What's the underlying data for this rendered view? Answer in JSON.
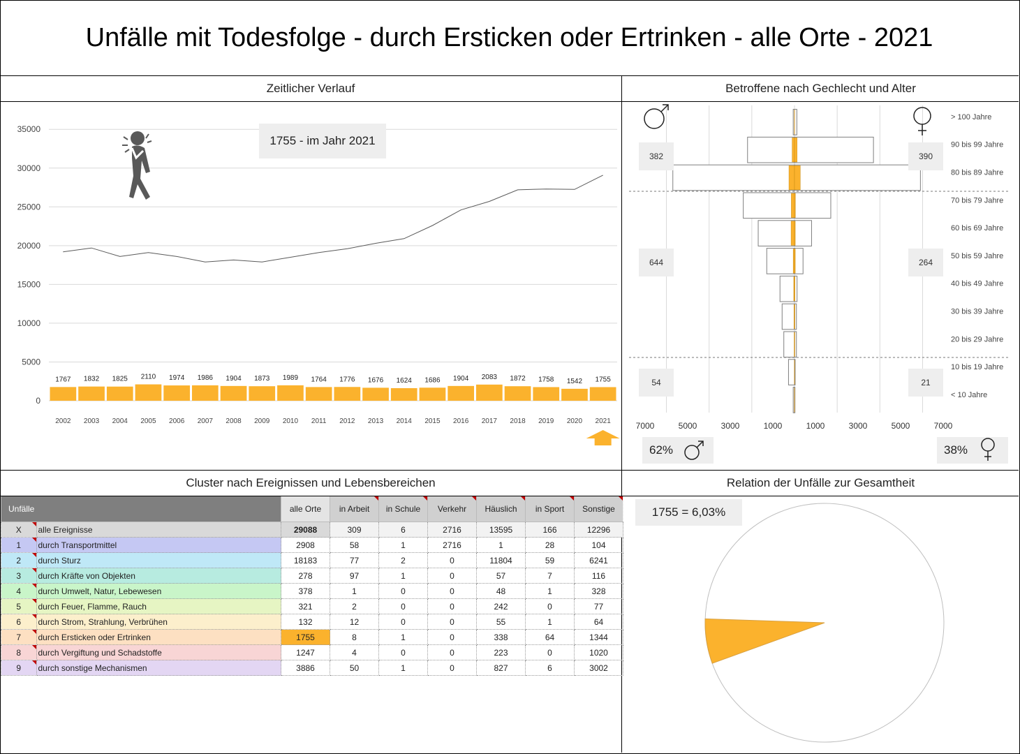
{
  "title": "Unfälle mit Todesfolge - durch Ersticken oder Ertrinken - alle Orte - 2021",
  "sections": {
    "timeline": "Zeitlicher Verlauf",
    "pyramid": "Betroffene nach Gechlecht und Alter",
    "cluster": "Cluster nach Ereignissen und Lebensbereichen",
    "relation": "Relation der Unfälle zur Gesamtheit"
  },
  "colors": {
    "accent": "#fbb22d",
    "line": "#595959",
    "header": "#7f7f7f",
    "figure": "#595959"
  },
  "timeline_info": "1755 - im Jahr 2021",
  "chart_data": [
    {
      "type": "bar",
      "categories": [
        "2002",
        "2003",
        "2004",
        "2005",
        "2006",
        "2007",
        "2008",
        "2009",
        "2010",
        "2011",
        "2012",
        "2013",
        "2014",
        "2015",
        "2016",
        "2017",
        "2018",
        "2019",
        "2020",
        "2021"
      ],
      "series": [
        {
          "values": [
            1767,
            1832,
            1825,
            2110,
            1974,
            1986,
            1904,
            1873,
            1989,
            1764,
            1776,
            1676,
            1624,
            1686,
            1904,
            2083,
            1872,
            1758,
            1542,
            1755
          ]
        },
        {
          "values": [
            19200,
            19700,
            18600,
            19100,
            18600,
            17900,
            18150,
            17900,
            18500,
            19100,
            19600,
            20300,
            20900,
            22600,
            24600,
            25700,
            27200,
            27300,
            27250,
            29088
          ]
        }
      ],
      "yticks": [
        0,
        5000,
        10000,
        15000,
        20000,
        25000,
        30000,
        35000
      ],
      "ylim": [
        0,
        37000
      ],
      "highlight_category": "2021",
      "grid": true
    },
    {
      "type": "bar",
      "orientation": "horizontal-pyramid",
      "categories": [
        "> 100 Jahre",
        "90 bis 99 Jahre",
        "80 bis 89 Jahre",
        "70 bis 79 Jahre",
        "60 bis 69 Jahre",
        "50 bis 59 Jahre",
        "40 bis 49 Jahre",
        "30 bis 39 Jahre",
        "20 bis 29 Jahre",
        "10 bis 19 Jahre",
        "< 10 Jahre"
      ],
      "series": [
        {
          "values": [
            60,
            2200,
            5700,
            2400,
            1700,
            1300,
            680,
            580,
            500,
            280,
            60
          ]
        },
        {
          "values": [
            110,
            3700,
            5900,
            1700,
            800,
            400,
            120,
            90,
            90,
            30,
            20
          ]
        },
        {
          "values": [
            8,
            110,
            260,
            150,
            160,
            60,
            35,
            25,
            15,
            8,
            8
          ]
        },
        {
          "values": [
            5,
            120,
            270,
            40,
            35,
            35,
            20,
            15,
            15,
            5,
            5
          ]
        }
      ],
      "xticks": [
        "7000",
        "5000",
        "3000",
        "1000",
        "1000",
        "3000",
        "5000",
        "7000"
      ],
      "xlim": [
        -7000,
        7000
      ],
      "group_totals": {
        "male": [
          "382",
          "644",
          "54"
        ],
        "female": [
          "390",
          "264",
          "21"
        ]
      },
      "male_share": "62%",
      "female_share": "38%"
    },
    {
      "type": "pie",
      "values": [
        1755,
        27333
      ],
      "label": "1755 =  6,03%"
    }
  ],
  "table": {
    "headers": [
      "Unfälle",
      "alle Orte",
      "in Arbeit",
      "in Schule",
      "Verkehr",
      "Häuslich",
      "in Sport",
      "Sonstige"
    ],
    "rows": [
      {
        "idx": "X",
        "name": "alle Ereignisse",
        "vals": [
          "29088",
          "309",
          "6",
          "2716",
          "13595",
          "166",
          "12296"
        ],
        "color": "#d9d9d9"
      },
      {
        "idx": "1",
        "name": "durch Transportmittel",
        "vals": [
          "2908",
          "58",
          "1",
          "2716",
          "1",
          "28",
          "104"
        ],
        "color": "#c5c8f3"
      },
      {
        "idx": "2",
        "name": "durch Sturz",
        "vals": [
          "18183",
          "77",
          "2",
          "0",
          "11804",
          "59",
          "6241"
        ],
        "color": "#bfe8f7"
      },
      {
        "idx": "3",
        "name": "durch Kräfte von Objekten",
        "vals": [
          "278",
          "97",
          "1",
          "0",
          "57",
          "7",
          "116"
        ],
        "color": "#b7ebe0"
      },
      {
        "idx": "4",
        "name": "durch Umwelt, Natur, Lebewesen",
        "vals": [
          "378",
          "1",
          "0",
          "0",
          "48",
          "1",
          "328"
        ],
        "color": "#c9f5c9"
      },
      {
        "idx": "5",
        "name": "durch Feuer, Flamme, Rauch",
        "vals": [
          "321",
          "2",
          "0",
          "0",
          "242",
          "0",
          "77"
        ],
        "color": "#e6f5c3"
      },
      {
        "idx": "6",
        "name": "durch Strom, Strahlung, Verbrühen",
        "vals": [
          "132",
          "12",
          "0",
          "0",
          "55",
          "1",
          "64"
        ],
        "color": "#fcefcc"
      },
      {
        "idx": "7",
        "name": "durch Ersticken oder Ertrinken",
        "vals": [
          "1755",
          "8",
          "1",
          "0",
          "338",
          "64",
          "1344"
        ],
        "color": "#fde0c2"
      },
      {
        "idx": "8",
        "name": "durch Vergiftung und Schadstoffe",
        "vals": [
          "1247",
          "4",
          "0",
          "0",
          "223",
          "0",
          "1020"
        ],
        "color": "#f8d5d5"
      },
      {
        "idx": "9",
        "name": "durch sonstige Mechanismen",
        "vals": [
          "3886",
          "50",
          "1",
          "0",
          "827",
          "6",
          "3002"
        ],
        "color": "#e3d6f3"
      }
    ],
    "highlight_row": 7
  }
}
